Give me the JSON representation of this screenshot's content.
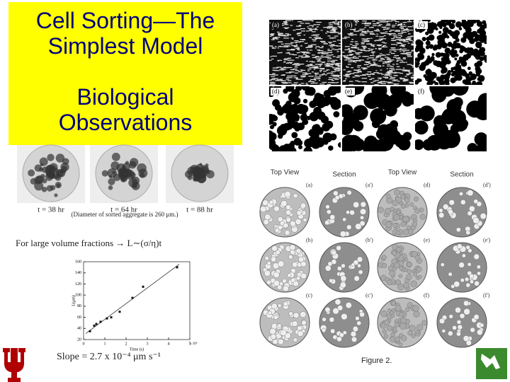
{
  "header": {
    "title": "Cell Sorting—The Simplest Model",
    "subtitle": "Biological Observations"
  },
  "micrograph": {
    "labels": [
      "(a)",
      "(b)",
      "(c)",
      "(d)",
      "(e)",
      "(f)"
    ]
  },
  "aggregates": {
    "times": [
      "t = 38 hr",
      "t = 64 hr",
      "t = 88 hr"
    ],
    "note": "(Diameter of sorted aggregate is 260 μm.)"
  },
  "law": "For large volume fractions → L∼(σ/η)t",
  "plot": {
    "xlabel": "Time (s)",
    "ylabel": "L(μm)",
    "xscale": "x 10⁴",
    "xlim": [
      0,
      5
    ],
    "ylim": [
      20,
      160
    ],
    "xticks": [
      0,
      1,
      2,
      3,
      4,
      5
    ],
    "yticks": [
      20,
      40,
      60,
      80,
      100,
      120,
      140,
      160
    ],
    "x": [
      0.3,
      0.5,
      0.6,
      0.8,
      1.1,
      1.3,
      1.7,
      2.3,
      2.8,
      4.4
    ],
    "y": [
      35,
      45,
      48,
      52,
      58,
      60,
      70,
      95,
      115,
      150
    ],
    "slope": "Slope = 2.7 x 10⁻⁴ μm s⁻¹"
  },
  "figure": {
    "headers": [
      "Top View",
      "Section",
      "Top View",
      "Section"
    ],
    "labels": [
      [
        "(a)",
        "(a')",
        "(d)",
        "(d')"
      ],
      [
        "(b)",
        "(b')",
        "(e)",
        "(e')"
      ],
      [
        "(c)",
        "(c')",
        "(f)",
        "(f')"
      ]
    ],
    "caption": "Figure 2."
  }
}
